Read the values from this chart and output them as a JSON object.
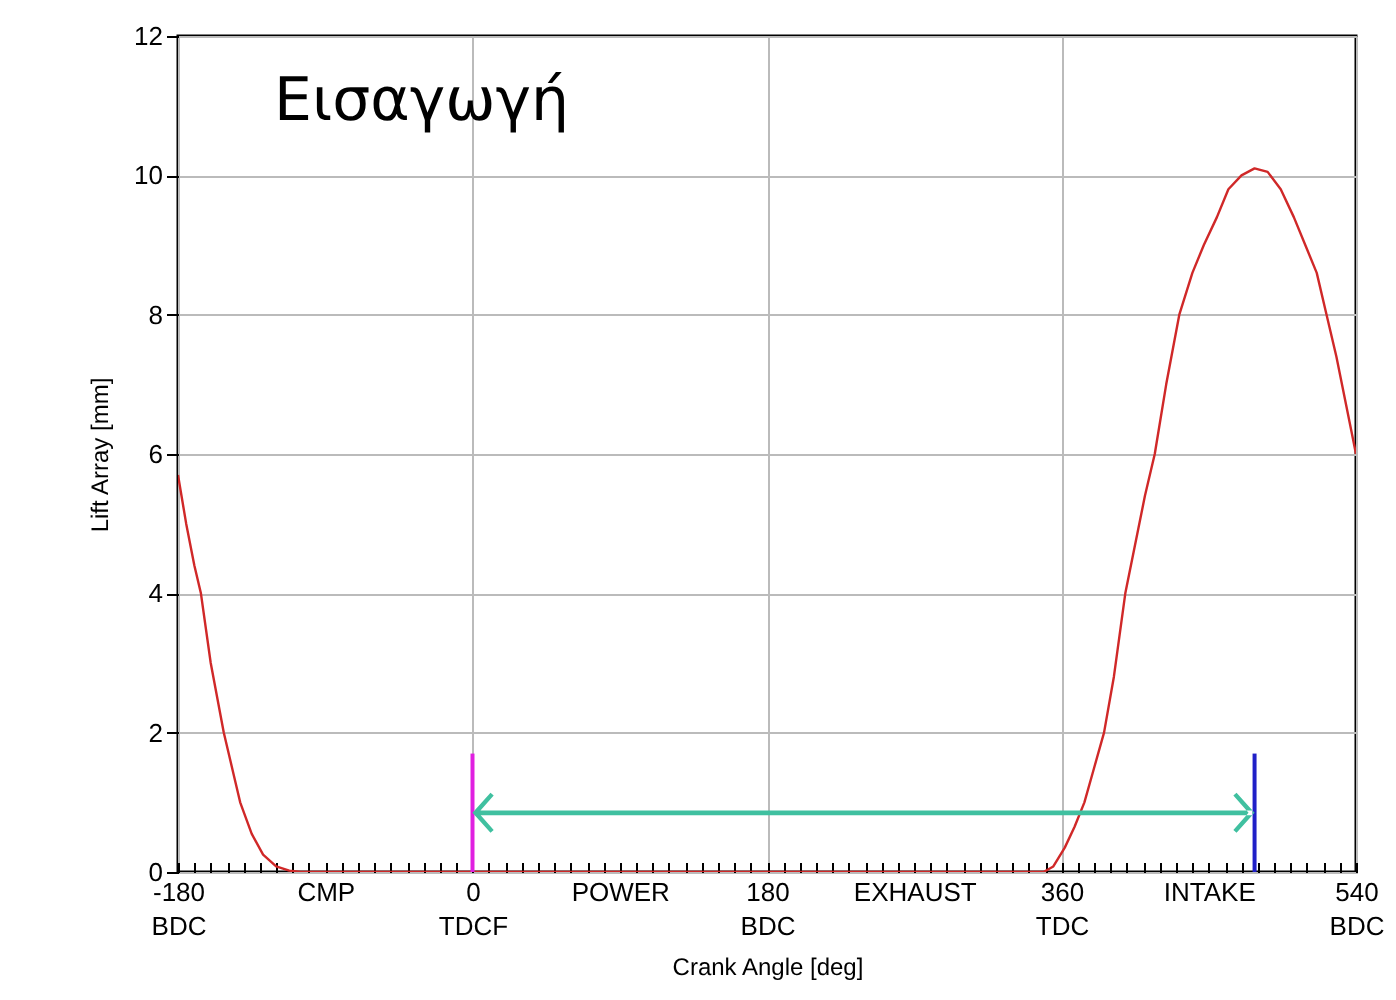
{
  "chart_data": {
    "type": "line",
    "title": "Εισαγωγή",
    "xlabel": "Crank Angle [deg]",
    "ylabel": "Lift Array [mm]",
    "series": [
      {
        "color": "#d02828",
        "x": [
          -180,
          -175,
          -170,
          -166,
          -160,
          -152,
          -146,
          -142,
          -135,
          -128,
          -120,
          -112,
          -105,
          349,
          355,
          362,
          368,
          374,
          380,
          386,
          392,
          399,
          405,
          411,
          417,
          424,
          432,
          440,
          447,
          455,
          462,
          470,
          478,
          486,
          494,
          502,
          509,
          516,
          522,
          528,
          534,
          540
        ],
        "values": [
          5.7,
          5.0,
          4.4,
          4.0,
          3.0,
          2.0,
          1.4,
          1.0,
          0.55,
          0.25,
          0.08,
          0.02,
          0,
          0,
          0.08,
          0.35,
          0.65,
          1.0,
          1.5,
          2.0,
          2.8,
          4.0,
          4.7,
          5.4,
          6.0,
          7.0,
          8.0,
          8.6,
          9.0,
          9.4,
          9.8,
          10.0,
          10.1,
          10.05,
          9.8,
          9.4,
          9.0,
          8.6,
          8.0,
          7.4,
          6.7,
          6.0
        ]
      },
      {
        "color": "#e020e0",
        "x": [
          0,
          0
        ],
        "values": [
          0,
          1.7
        ]
      },
      {
        "color": "#2020c8",
        "x": [
          478,
          478
        ],
        "values": [
          0,
          1.7
        ]
      }
    ],
    "xlim": [
      -180,
      540
    ],
    "ylim": [
      0,
      12
    ],
    "yticks": [
      0,
      2,
      4,
      6,
      8,
      10,
      12
    ],
    "xticks": [
      {
        "value": -180,
        "label": "-180\nBDC"
      },
      {
        "value": -170,
        "label": null
      },
      {
        "value": -160,
        "label": null
      },
      {
        "value": -150,
        "label": null
      },
      {
        "value": -140,
        "label": null
      },
      {
        "value": -130,
        "label": null
      },
      {
        "value": -120,
        "label": null
      },
      {
        "value": -110,
        "label": null
      },
      {
        "value": -100,
        "label": null
      },
      {
        "value": -90,
        "label": "CMP"
      },
      {
        "value": -80,
        "label": null
      },
      {
        "value": -70,
        "label": null
      },
      {
        "value": -60,
        "label": null
      },
      {
        "value": -50,
        "label": null
      },
      {
        "value": -40,
        "label": null
      },
      {
        "value": -30,
        "label": null
      },
      {
        "value": -20,
        "label": null
      },
      {
        "value": -10,
        "label": null
      },
      {
        "value": 0,
        "label": "0\nTDCF"
      },
      {
        "value": 10,
        "label": null
      },
      {
        "value": 20,
        "label": null
      },
      {
        "value": 30,
        "label": null
      },
      {
        "value": 40,
        "label": null
      },
      {
        "value": 50,
        "label": null
      },
      {
        "value": 60,
        "label": null
      },
      {
        "value": 70,
        "label": null
      },
      {
        "value": 80,
        "label": null
      },
      {
        "value": 90,
        "label": "POWER"
      },
      {
        "value": 100,
        "label": null
      },
      {
        "value": 110,
        "label": null
      },
      {
        "value": 120,
        "label": null
      },
      {
        "value": 130,
        "label": null
      },
      {
        "value": 140,
        "label": null
      },
      {
        "value": 150,
        "label": null
      },
      {
        "value": 160,
        "label": null
      },
      {
        "value": 170,
        "label": null
      },
      {
        "value": 180,
        "label": "180\nBDC"
      },
      {
        "value": 190,
        "label": null
      },
      {
        "value": 200,
        "label": null
      },
      {
        "value": 210,
        "label": null
      },
      {
        "value": 220,
        "label": null
      },
      {
        "value": 230,
        "label": null
      },
      {
        "value": 240,
        "label": null
      },
      {
        "value": 250,
        "label": null
      },
      {
        "value": 260,
        "label": null
      },
      {
        "value": 270,
        "label": "EXHAUST"
      },
      {
        "value": 280,
        "label": null
      },
      {
        "value": 290,
        "label": null
      },
      {
        "value": 300,
        "label": null
      },
      {
        "value": 310,
        "label": null
      },
      {
        "value": 320,
        "label": null
      },
      {
        "value": 330,
        "label": null
      },
      {
        "value": 340,
        "label": null
      },
      {
        "value": 350,
        "label": null
      },
      {
        "value": 360,
        "label": "360\nTDC"
      },
      {
        "value": 370,
        "label": null
      },
      {
        "value": 380,
        "label": null
      },
      {
        "value": 390,
        "label": null
      },
      {
        "value": 400,
        "label": null
      },
      {
        "value": 410,
        "label": null
      },
      {
        "value": 420,
        "label": null
      },
      {
        "value": 430,
        "label": null
      },
      {
        "value": 440,
        "label": null
      },
      {
        "value": 450,
        "label": "INTAKE"
      },
      {
        "value": 460,
        "label": null
      },
      {
        "value": 470,
        "label": null
      },
      {
        "value": 480,
        "label": null
      },
      {
        "value": 490,
        "label": null
      },
      {
        "value": 500,
        "label": null
      },
      {
        "value": 510,
        "label": null
      },
      {
        "value": 520,
        "label": null
      },
      {
        "value": 530,
        "label": null
      },
      {
        "value": 540,
        "label": "540\nBDC"
      }
    ],
    "grid": true
  }
}
